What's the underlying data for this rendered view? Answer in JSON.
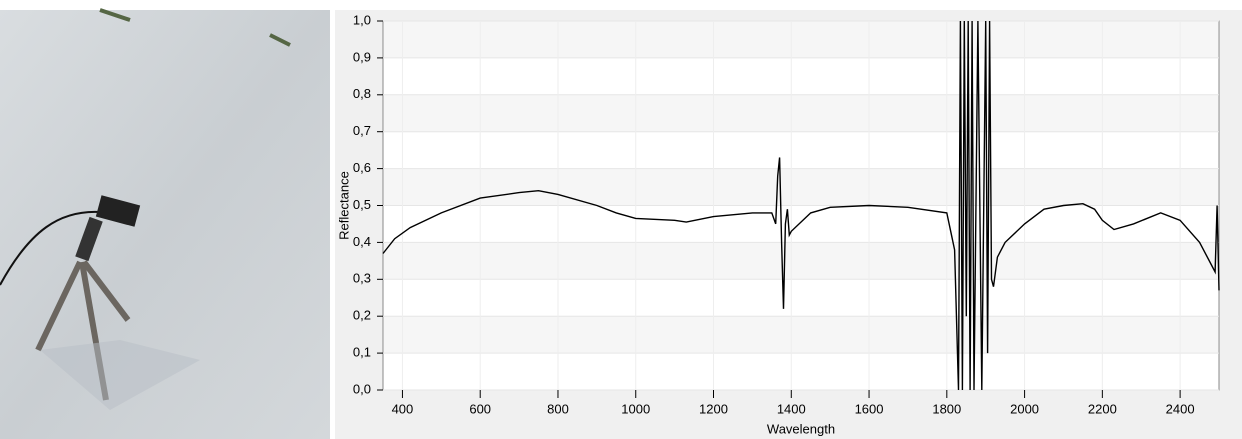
{
  "chart_data": {
    "type": "line",
    "x_label": "Wavelength",
    "y_label": "Reflectance",
    "xlim": [
      350,
      2500
    ],
    "xticks": [
      400,
      600,
      800,
      1000,
      1200,
      1400,
      1600,
      1800,
      2000,
      2200,
      2400
    ],
    "ylim": [
      0,
      1
    ],
    "yticks": [
      {
        "value": 0,
        "label": "0,0"
      },
      {
        "value": 0.1,
        "label": "0,1"
      },
      {
        "value": 0.2,
        "label": "0,2"
      },
      {
        "value": 0.3,
        "label": "0,3"
      },
      {
        "value": 0.4,
        "label": "0,4"
      },
      {
        "value": 0.5,
        "label": "0,5"
      },
      {
        "value": 0.6,
        "label": "0,6"
      },
      {
        "value": 0.7,
        "label": "0,7"
      },
      {
        "value": 0.8,
        "label": "0,8"
      },
      {
        "value": 0.9,
        "label": "0,9"
      },
      {
        "value": 1,
        "label": "1,0"
      }
    ],
    "grid": true,
    "series": [
      {
        "color": "#000000",
        "x": [
          350,
          380,
          420,
          500,
          600,
          700,
          750,
          800,
          900,
          950,
          1000,
          1100,
          1130,
          1200,
          1300,
          1350,
          1360,
          1365,
          1370,
          1375,
          1380,
          1385,
          1390,
          1395,
          1400,
          1450,
          1500,
          1600,
          1700,
          1800,
          1810,
          1820,
          1830,
          1835,
          1840,
          1845,
          1850,
          1855,
          1860,
          1865,
          1870,
          1880,
          1890,
          1900,
          1905,
          1910,
          1915,
          1920,
          1930,
          1950,
          2000,
          2050,
          2100,
          2150,
          2180,
          2200,
          2230,
          2280,
          2350,
          2400,
          2450,
          2480,
          2490,
          2495,
          2500
        ],
        "values": [
          0.37,
          0.41,
          0.44,
          0.48,
          0.52,
          0.535,
          0.54,
          0.53,
          0.5,
          0.48,
          0.465,
          0.46,
          0.455,
          0.47,
          0.48,
          0.48,
          0.45,
          0.58,
          0.63,
          0.4,
          0.22,
          0.45,
          0.49,
          0.42,
          0.43,
          0.48,
          0.495,
          0.5,
          0.495,
          0.48,
          0.43,
          0.38,
          0,
          1,
          0,
          1,
          0.2,
          1,
          0,
          1,
          0,
          1,
          0,
          1,
          0.1,
          1,
          0.3,
          0.28,
          0.36,
          0.4,
          0.45,
          0.49,
          0.5,
          0.505,
          0.49,
          0.46,
          0.435,
          0.45,
          0.48,
          0.46,
          0.4,
          0.34,
          0.32,
          0.5,
          0.27
        ]
      }
    ]
  }
}
